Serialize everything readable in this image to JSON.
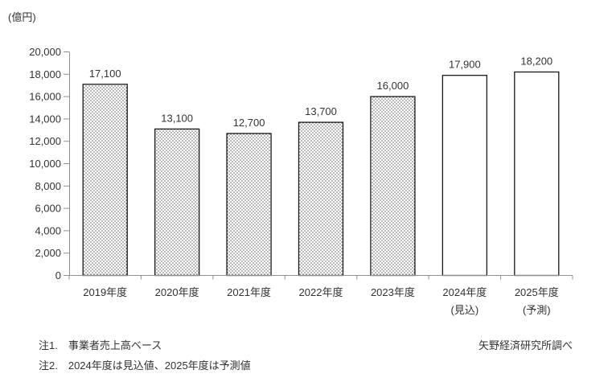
{
  "chart_data": {
    "type": "bar",
    "title": "",
    "unit_label": "(億円)",
    "categories": [
      "2019年度",
      "2020年度",
      "2021年度",
      "2022年度",
      "2023年度",
      "2024年度",
      "2025年度"
    ],
    "category_sublabels": [
      "",
      "",
      "",
      "",
      "",
      "(見込)",
      "(予測)"
    ],
    "values": [
      17100,
      13100,
      12700,
      13700,
      16000,
      17900,
      18200
    ],
    "value_labels": [
      "17,100",
      "13,100",
      "12,700",
      "13,700",
      "16,000",
      "17,900",
      "18,200"
    ],
    "bar_styles": [
      "dotted",
      "dotted",
      "dotted",
      "dotted",
      "dotted",
      "plain",
      "plain"
    ],
    "ylim": [
      0,
      20000
    ],
    "ytick_step": 2000,
    "ytick_labels": [
      "0",
      "2,000",
      "4,000",
      "6,000",
      "8,000",
      "10,000",
      "12,000",
      "14,000",
      "16,000",
      "18,000",
      "20,000"
    ],
    "grid": false,
    "legend": "none",
    "colors": {
      "bar_fill_plain": "#ffffff",
      "bar_pattern_dot": "#000000",
      "bar_border": "#1a1a1a",
      "axis": "#919191",
      "text": "#333333"
    }
  },
  "footnotes": {
    "note1": "注1.　事業者売上高ベース",
    "note2": "注2.　2024年度は見込値、2025年度は予測値",
    "source": "矢野経済研究所調べ"
  }
}
